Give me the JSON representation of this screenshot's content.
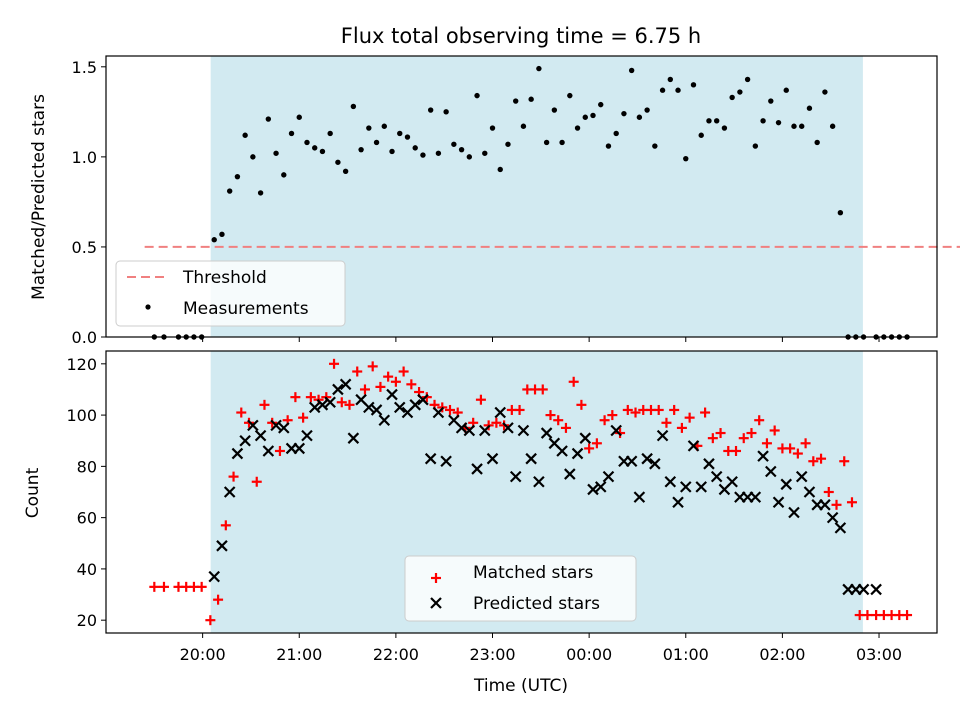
{
  "figure": {
    "title": "Flux total observing time = 6.75 h",
    "xlabel": "Time (UTC)"
  },
  "chart_data": [
    {
      "type": "scatter",
      "panel": "top",
      "ylabel": "Matched/Predicted stars",
      "x_unit": "hours since 19:00 UTC",
      "xlim": [
        19.0,
        27.6
      ],
      "ylim": [
        0,
        1.56
      ],
      "yticks": [
        0,
        0.5,
        1.0,
        1.5
      ],
      "ytick_labels": [
        "0.0",
        "0.5",
        "1.0",
        "1.5"
      ],
      "observing_window": {
        "start": "20:05",
        "end": "02:50",
        "color": "#add8e6"
      },
      "threshold": {
        "name": "Threshold",
        "value": 0.5,
        "x_range": [
          19.4,
          28.3
        ],
        "color": "#f08080"
      },
      "series": [
        {
          "name": "Measurements",
          "color": "#000000",
          "x": [
            19.5,
            19.6,
            19.75,
            19.83,
            19.91,
            19.99,
            20.12,
            20.2,
            20.28,
            20.36,
            20.44,
            20.52,
            20.6,
            20.68,
            20.76,
            20.84,
            20.92,
            21.0,
            21.08,
            21.16,
            21.24,
            21.32,
            21.4,
            21.48,
            21.56,
            21.64,
            21.72,
            21.8,
            21.88,
            21.96,
            22.04,
            22.12,
            22.2,
            22.28,
            22.36,
            22.44,
            22.52,
            22.6,
            22.68,
            22.76,
            22.84,
            22.92,
            23.0,
            23.08,
            23.16,
            23.24,
            23.32,
            23.4,
            23.48,
            23.56,
            23.64,
            23.72,
            23.8,
            23.88,
            23.96,
            24.04,
            24.12,
            24.2,
            24.28,
            24.36,
            24.44,
            24.52,
            24.6,
            24.68,
            24.76,
            24.84,
            24.92,
            25.0,
            25.08,
            25.16,
            25.24,
            25.32,
            25.4,
            25.48,
            25.56,
            25.64,
            25.72,
            25.8,
            25.88,
            25.96,
            26.04,
            26.12,
            26.2,
            26.28,
            26.36,
            26.44,
            26.52,
            26.6,
            26.68,
            26.76,
            26.84,
            26.97,
            27.05,
            27.13,
            27.21,
            27.29
          ],
          "y": [
            0,
            0,
            0,
            0,
            0,
            0,
            0.54,
            0.57,
            0.81,
            0.89,
            1.12,
            1.0,
            0.8,
            1.21,
            1.02,
            0.9,
            1.13,
            1.22,
            1.08,
            1.05,
            1.03,
            1.13,
            0.97,
            0.92,
            1.28,
            1.04,
            1.16,
            1.08,
            1.17,
            1.03,
            1.13,
            1.11,
            1.05,
            1.01,
            1.26,
            1.02,
            1.25,
            1.07,
            1.04,
            1.0,
            1.34,
            1.02,
            1.16,
            0.93,
            1.07,
            1.31,
            1.17,
            1.32,
            1.49,
            1.08,
            1.26,
            1.08,
            1.34,
            1.16,
            1.22,
            1.23,
            1.29,
            1.06,
            1.13,
            1.24,
            1.48,
            1.22,
            1.26,
            1.06,
            1.37,
            1.43,
            1.37,
            0.99,
            1.4,
            1.12,
            1.2,
            1.2,
            1.16,
            1.33,
            1.36,
            1.43,
            1.06,
            1.2,
            1.31,
            1.19,
            1.37,
            1.17,
            1.17,
            1.27,
            1.08,
            1.36,
            1.17,
            0.69,
            0,
            0,
            0,
            0,
            0,
            0,
            0,
            0
          ]
        }
      ],
      "legend": {
        "placement": "lower-left",
        "entries": [
          "Threshold",
          "Measurements"
        ]
      }
    },
    {
      "type": "scatter",
      "panel": "bottom",
      "ylabel": "Count",
      "xlabel": "Time (UTC)",
      "x_unit": "hours since 19:00 UTC",
      "xlim": [
        19.0,
        27.6
      ],
      "ylim": [
        15,
        125
      ],
      "yticks": [
        20,
        40,
        60,
        80,
        100,
        120
      ],
      "ytick_labels": [
        "20",
        "40",
        "60",
        "80",
        "100",
        "120"
      ],
      "xtick_values": [
        20,
        21,
        22,
        23,
        24,
        25,
        26,
        27
      ],
      "xtick_labels": [
        "20:00",
        "21:00",
        "22:00",
        "23:00",
        "00:00",
        "01:00",
        "02:00",
        "03:00"
      ],
      "observing_window": {
        "start": "20:05",
        "end": "02:50",
        "color": "#add8e6"
      },
      "series": [
        {
          "name": "Matched stars",
          "marker": "+",
          "color": "#ff0000",
          "x": [
            19.5,
            19.6,
            19.75,
            19.83,
            19.91,
            19.99,
            20.08,
            20.16,
            20.24,
            20.32,
            20.4,
            20.48,
            20.56,
            20.64,
            20.72,
            20.8,
            20.88,
            20.96,
            21.04,
            21.12,
            21.2,
            21.28,
            21.36,
            21.44,
            21.52,
            21.6,
            21.68,
            21.76,
            21.84,
            21.92,
            22.0,
            22.08,
            22.16,
            22.24,
            22.32,
            22.4,
            22.48,
            22.56,
            22.64,
            22.72,
            22.8,
            22.88,
            22.96,
            23.04,
            23.12,
            23.2,
            23.28,
            23.36,
            23.44,
            23.52,
            23.6,
            23.68,
            23.76,
            23.84,
            23.92,
            24.0,
            24.08,
            24.16,
            24.24,
            24.32,
            24.4,
            24.48,
            24.56,
            24.64,
            24.72,
            24.8,
            24.88,
            24.96,
            25.04,
            25.12,
            25.2,
            25.28,
            25.36,
            25.44,
            25.52,
            25.6,
            25.68,
            25.76,
            25.84,
            25.92,
            26.0,
            26.08,
            26.16,
            26.24,
            26.32,
            26.4,
            26.48,
            26.56,
            26.64,
            26.72,
            26.8,
            26.88,
            26.97,
            27.05,
            27.13,
            27.21,
            27.29
          ],
          "y": [
            33,
            33,
            33,
            33,
            33,
            33,
            20,
            28,
            57,
            76,
            101,
            97,
            74,
            104,
            97,
            86,
            98,
            107,
            99,
            107,
            106,
            107,
            120,
            105,
            104,
            117,
            110,
            119,
            111,
            115,
            113,
            117,
            112,
            109,
            107,
            104,
            103,
            102,
            101,
            95,
            97,
            106,
            96,
            97,
            96,
            102,
            102,
            110,
            110,
            110,
            100,
            98,
            95,
            113,
            104,
            87,
            89,
            98,
            100,
            93,
            102,
            101,
            102,
            102,
            102,
            97,
            102,
            95,
            99,
            88,
            101,
            91,
            93,
            86,
            86,
            91,
            93,
            98,
            89,
            94,
            87,
            87,
            85,
            89,
            82,
            83,
            70,
            65,
            82,
            66,
            22,
            22,
            22,
            22,
            22,
            22,
            22
          ]
        },
        {
          "name": "Predicted stars",
          "marker": "x",
          "color": "#000000",
          "x": [
            20.12,
            20.2,
            20.28,
            20.36,
            20.44,
            20.52,
            20.6,
            20.68,
            20.76,
            20.84,
            20.92,
            21.0,
            21.08,
            21.16,
            21.24,
            21.32,
            21.4,
            21.48,
            21.56,
            21.64,
            21.72,
            21.8,
            21.88,
            21.96,
            22.04,
            22.12,
            22.2,
            22.28,
            22.36,
            22.44,
            22.52,
            22.6,
            22.68,
            22.76,
            22.84,
            22.92,
            23.0,
            23.08,
            23.16,
            23.24,
            23.32,
            23.4,
            23.48,
            23.56,
            23.64,
            23.72,
            23.8,
            23.88,
            23.96,
            24.04,
            24.12,
            24.2,
            24.28,
            24.36,
            24.44,
            24.52,
            24.6,
            24.68,
            24.76,
            24.84,
            24.92,
            25.0,
            25.08,
            25.16,
            25.24,
            25.32,
            25.4,
            25.48,
            25.56,
            25.64,
            25.72,
            25.8,
            25.88,
            25.96,
            26.04,
            26.12,
            26.2,
            26.28,
            26.36,
            26.44,
            26.52,
            26.6,
            26.68,
            26.76,
            26.84,
            26.97
          ],
          "y": [
            37,
            49,
            70,
            85,
            90,
            96,
            92,
            86,
            96,
            95,
            87,
            87,
            92,
            103,
            104,
            105,
            110,
            112,
            91,
            106,
            103,
            102,
            98,
            108,
            103,
            101,
            104,
            106,
            83,
            101,
            82,
            98,
            95,
            94,
            79,
            94,
            83,
            101,
            95,
            76,
            94,
            83,
            74,
            93,
            89,
            86,
            77,
            85,
            91,
            71,
            72,
            76,
            94,
            82,
            82,
            68,
            83,
            81,
            92,
            74,
            66,
            72,
            88,
            72,
            81,
            76,
            71,
            74,
            68,
            68,
            68,
            84,
            78,
            66,
            73,
            62,
            76,
            70,
            65,
            65,
            60,
            56,
            32,
            32,
            32,
            32
          ]
        }
      ],
      "legend": {
        "placement": "lower-center",
        "entries": [
          "Matched stars",
          "Predicted stars"
        ]
      }
    }
  ]
}
